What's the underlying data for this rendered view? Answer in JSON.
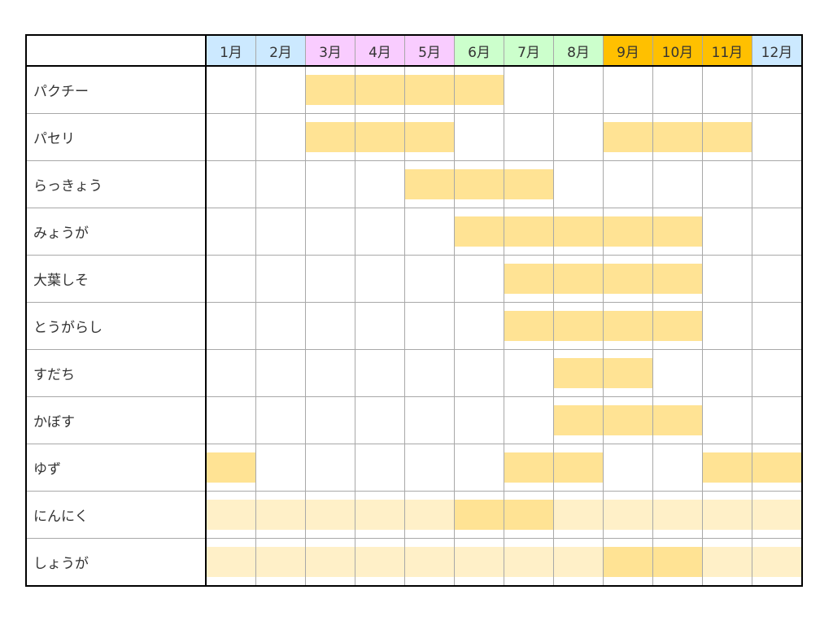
{
  "chart_data": {
    "type": "table",
    "categories": [
      "1月",
      "2月",
      "3月",
      "4月",
      "5月",
      "6月",
      "7月",
      "8月",
      "9月",
      "10月",
      "11月",
      "12月"
    ],
    "month_colors": [
      "#cce9ff",
      "#cce9ff",
      "#f9ccff",
      "#f9ccff",
      "#f9ccff",
      "#ccffcc",
      "#ccffcc",
      "#ccffcc",
      "#ffc000",
      "#ffc000",
      "#ffc000",
      "#cce9ff"
    ],
    "level_colors": {
      "0": "#ffffff",
      "1": "#fff0c8",
      "2": "#ffe394",
      "3": "#ffe394"
    },
    "rows": [
      {
        "name": "パクチー",
        "values": [
          0,
          0,
          2,
          2,
          2,
          2,
          0,
          0,
          0,
          0,
          0,
          0
        ]
      },
      {
        "name": "パセリ",
        "values": [
          0,
          0,
          2,
          2,
          2,
          0,
          0,
          0,
          2,
          2,
          2,
          0
        ]
      },
      {
        "name": "らっきょう",
        "values": [
          0,
          0,
          0,
          0,
          2,
          2,
          2,
          0,
          0,
          0,
          0,
          0
        ]
      },
      {
        "name": "みょうが",
        "values": [
          0,
          0,
          0,
          0,
          0,
          2,
          2,
          2,
          2,
          2,
          0,
          0
        ]
      },
      {
        "name": "大葉しそ",
        "values": [
          0,
          0,
          0,
          0,
          0,
          0,
          2,
          2,
          2,
          2,
          0,
          0
        ]
      },
      {
        "name": "とうがらし",
        "values": [
          0,
          0,
          0,
          0,
          0,
          0,
          2,
          2,
          2,
          2,
          0,
          0
        ]
      },
      {
        "name": "すだち",
        "values": [
          0,
          0,
          0,
          0,
          0,
          0,
          0,
          2,
          2,
          0,
          0,
          0
        ]
      },
      {
        "name": "かぼす",
        "values": [
          0,
          0,
          0,
          0,
          0,
          0,
          0,
          2,
          2,
          2,
          0,
          0
        ]
      },
      {
        "name": "ゆず",
        "values": [
          2,
          0,
          0,
          0,
          0,
          0,
          2,
          2,
          0,
          0,
          2,
          2
        ]
      },
      {
        "name": "にんにく",
        "values": [
          1,
          1,
          1,
          1,
          1,
          2,
          2,
          1,
          1,
          1,
          1,
          1
        ]
      },
      {
        "name": "しょうが",
        "values": [
          1,
          1,
          1,
          1,
          1,
          1,
          1,
          1,
          2,
          2,
          1,
          1
        ]
      }
    ]
  }
}
